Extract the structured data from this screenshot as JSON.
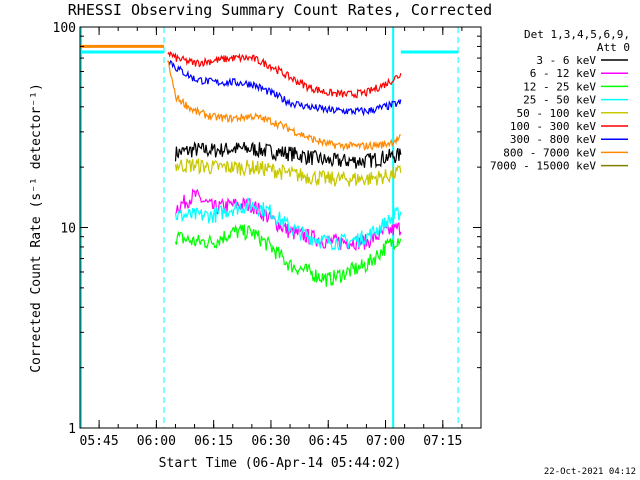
{
  "chart_data": {
    "type": "line",
    "title": "RHESSI Observing Summary Count Rates, Corrected",
    "xlabel": "Start Time (06-Apr-14 05:44:02)",
    "ylabel": "Corrected Count Rate (s⁻¹ detector⁻¹)",
    "y_scale": "log",
    "ylim": [
      1,
      100
    ],
    "xlim": [
      "05:40",
      "07:25"
    ],
    "x_ticks": [
      "05:45",
      "06:00",
      "06:15",
      "06:30",
      "06:45",
      "07:00",
      "07:15"
    ],
    "y_ticks": [
      "1",
      "10",
      "100"
    ],
    "grid": false,
    "legend_header": [
      "Det 1,3,4,5,6,9,",
      "Att 0"
    ],
    "legend_position": "right",
    "colors": {
      "frame": "#000000",
      "cyan_marker": "#00ffff",
      "dashed_marker": "#00ffff",
      "orange_marker": "#ff8800"
    },
    "time_markers": {
      "solid": [
        "05:40",
        "07:02"
      ],
      "dashed": [
        "06:02",
        "07:19"
      ]
    },
    "series": [
      {
        "name": "3 - 6 keV",
        "color": "#000000",
        "x": [
          "06:05",
          "06:10",
          "06:15",
          "06:20",
          "06:25",
          "06:30",
          "06:35",
          "06:40",
          "06:45",
          "06:50",
          "06:55",
          "07:00",
          "07:04"
        ],
        "y": [
          23.5,
          24.5,
          24.3,
          24.7,
          24.7,
          24,
          23.5,
          22.5,
          21.5,
          21.5,
          21.5,
          22.5,
          23
        ]
      },
      {
        "name": "6 - 12 keV",
        "color": "#ff00ff",
        "x": [
          "06:05",
          "06:10",
          "06:15",
          "06:20",
          "06:25",
          "06:30",
          "06:35",
          "06:40",
          "06:45",
          "06:50",
          "06:55",
          "07:00",
          "07:04"
        ],
        "y": [
          12.5,
          14.5,
          12.5,
          13,
          13,
          11,
          9.5,
          9,
          8.5,
          8.5,
          8.5,
          9.5,
          10
        ]
      },
      {
        "name": "12 - 25 keV",
        "color": "#00ff00",
        "x": [
          "06:05",
          "06:10",
          "06:15",
          "06:20",
          "06:25",
          "06:30",
          "06:35",
          "06:40",
          "06:45",
          "06:50",
          "06:55",
          "07:00",
          "07:04"
        ],
        "y": [
          9,
          8.5,
          8.5,
          9.5,
          9.5,
          8,
          6.5,
          6,
          5.5,
          6,
          6.5,
          8,
          9
        ]
      },
      {
        "name": "25 - 50 keV",
        "color": "#00ffff",
        "x": [
          "06:05",
          "06:10",
          "06:15",
          "06:20",
          "06:25",
          "06:30",
          "06:35",
          "06:40",
          "06:45",
          "06:50",
          "06:55",
          "07:00",
          "07:04"
        ],
        "y": [
          11.5,
          11.5,
          11.5,
          12.5,
          13,
          12,
          10,
          9,
          8.5,
          8.5,
          9,
          10.5,
          12
        ]
      },
      {
        "name": "50 - 100 keV",
        "color": "#c8c800",
        "x": [
          "06:05",
          "06:10",
          "06:15",
          "06:20",
          "06:25",
          "06:30",
          "06:35",
          "06:40",
          "06:45",
          "06:50",
          "06:55",
          "07:00",
          "07:04"
        ],
        "y": [
          20.5,
          20.5,
          20,
          20,
          20,
          19.5,
          18.5,
          18,
          17.5,
          17.5,
          17.5,
          18,
          19
        ]
      },
      {
        "name": "100 - 300 keV",
        "color": "#ff0000",
        "x": [
          "06:03",
          "06:05",
          "06:10",
          "06:15",
          "06:20",
          "06:25",
          "06:30",
          "06:35",
          "06:40",
          "06:45",
          "06:50",
          "06:55",
          "07:00",
          "07:04"
        ],
        "y": [
          75,
          70,
          66,
          68,
          70,
          70,
          64,
          56,
          50,
          47,
          46,
          47,
          52,
          58
        ]
      },
      {
        "name": "300 - 800 keV",
        "color": "#0000ff",
        "x": [
          "06:03",
          "06:05",
          "06:10",
          "06:15",
          "06:20",
          "06:25",
          "06:30",
          "06:35",
          "06:40",
          "06:45",
          "06:50",
          "06:55",
          "07:00",
          "07:04"
        ],
        "y": [
          70,
          63,
          55,
          53,
          53,
          52,
          47,
          42,
          40,
          38.5,
          38,
          38,
          40,
          42
        ]
      },
      {
        "name": "800 - 7000 keV",
        "color": "#ff8800",
        "x": [
          "06:03",
          "06:05",
          "06:10",
          "06:15",
          "06:20",
          "06:25",
          "06:30",
          "06:35",
          "06:40",
          "06:45",
          "06:50",
          "06:55",
          "07:00",
          "07:04"
        ],
        "y": [
          68,
          45,
          38,
          35.5,
          35,
          36,
          34,
          31,
          28,
          26,
          25.5,
          25.5,
          26,
          28
        ]
      },
      {
        "name": "7000 - 15000 keV",
        "color": "#808000",
        "x": [],
        "y": []
      }
    ],
    "pre_flare_levels": {
      "orange": {
        "x": [
          "05:40",
          "06:02"
        ],
        "y": 80
      },
      "cyan": {
        "x": [
          "05:40",
          "06:02"
        ],
        "y": 75
      },
      "cyan_post": {
        "x": [
          "07:04",
          "07:19"
        ],
        "y": 75
      }
    },
    "footer_stamp": "22-Oct-2021 04:12"
  }
}
